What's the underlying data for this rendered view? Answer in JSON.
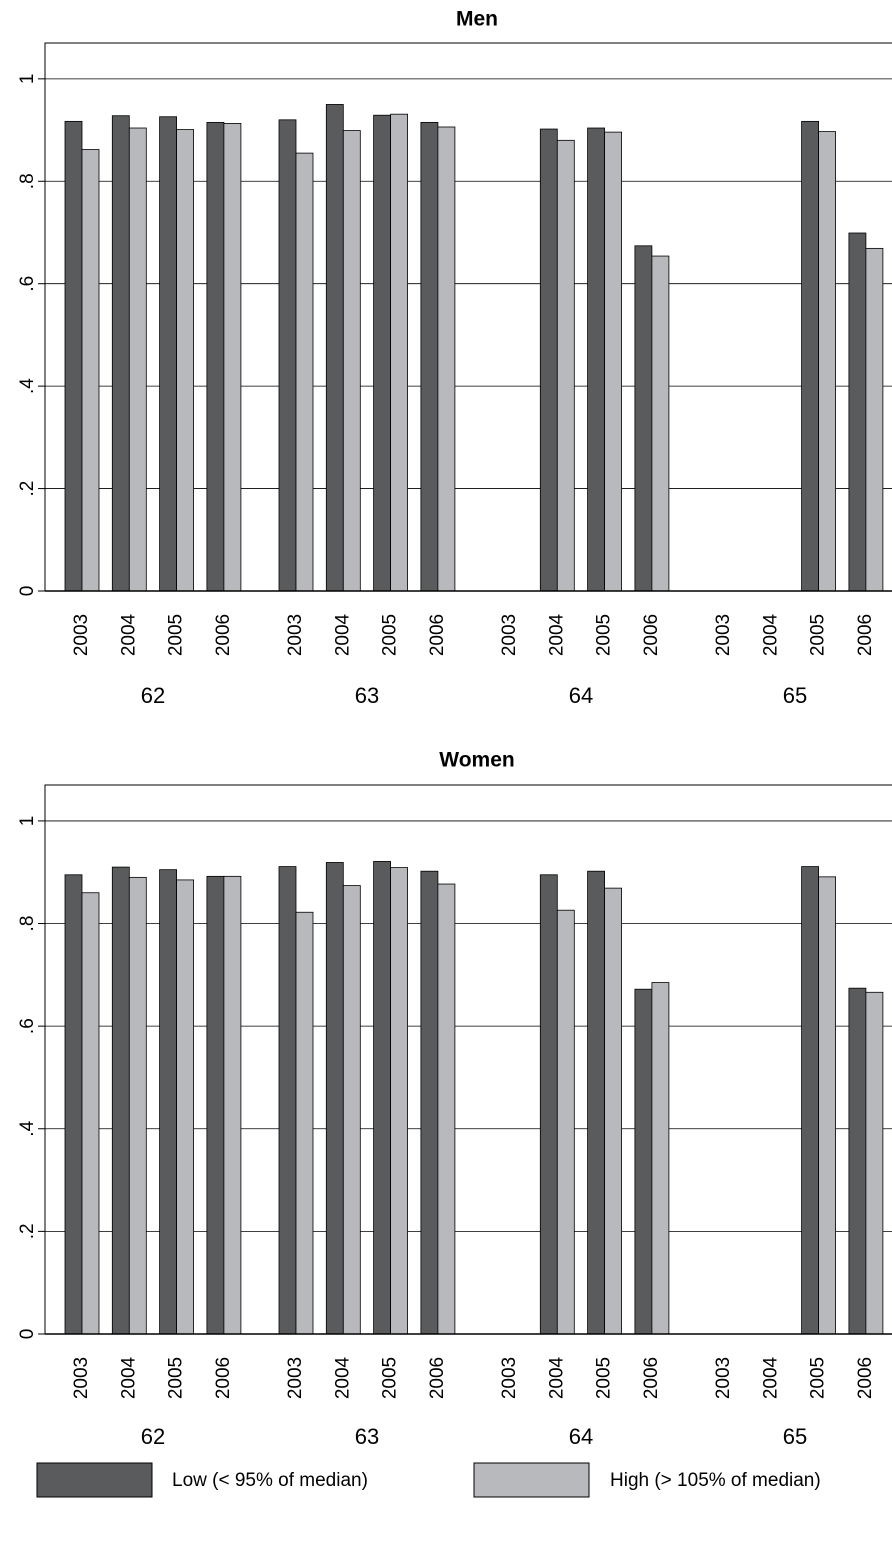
{
  "chart_data": [
    {
      "type": "bar",
      "title": "Men",
      "categories": [
        "2003",
        "2004",
        "2005",
        "2006",
        "2003",
        "2004",
        "2005",
        "2006",
        "2003",
        "2004",
        "2005",
        "2006",
        "2003",
        "2004",
        "2005",
        "2006"
      ],
      "groups": [
        "62",
        "63",
        "64",
        "65"
      ],
      "series": [
        {
          "name": "Low (< 95% of median)",
          "color": "#5a5b5d",
          "values": [
            0.917,
            0.928,
            0.926,
            0.915,
            0.92,
            0.95,
            0.929,
            0.915,
            null,
            0.902,
            0.904,
            0.674,
            null,
            null,
            0.917,
            0.699
          ]
        },
        {
          "name": "High (> 105% of median)",
          "color": "#b8b9bc",
          "values": [
            0.862,
            0.904,
            0.901,
            0.913,
            0.855,
            0.899,
            0.931,
            0.906,
            null,
            0.88,
            0.896,
            0.654,
            null,
            null,
            0.897,
            0.669
          ]
        }
      ],
      "ylim": [
        0,
        1.07
      ],
      "yticks": [
        0,
        {
          "value": 0.2,
          "label": ".2"
        },
        {
          "value": 0.4,
          "label": ".4"
        },
        {
          "value": 0.6,
          "label": ".6"
        },
        {
          "value": 0.8,
          "label": ".8"
        },
        1
      ],
      "grid": true
    },
    {
      "type": "bar",
      "title": "Women",
      "categories": [
        "2003",
        "2004",
        "2005",
        "2006",
        "2003",
        "2004",
        "2005",
        "2006",
        "2003",
        "2004",
        "2005",
        "2006",
        "2003",
        "2004",
        "2005",
        "2006"
      ],
      "groups": [
        "62",
        "63",
        "64",
        "65"
      ],
      "series": [
        {
          "color": "#5a5b5d",
          "values": [
            0.895,
            0.91,
            0.905,
            0.892,
            0.911,
            0.919,
            0.921,
            0.902,
            null,
            0.895,
            0.902,
            0.672,
            null,
            null,
            0.911,
            0.674
          ]
        },
        {
          "color": "#b8b9bc",
          "values": [
            0.86,
            0.89,
            0.885,
            0.892,
            0.822,
            0.874,
            0.909,
            0.877,
            null,
            0.826,
            0.869,
            0.685,
            null,
            null,
            0.891,
            0.666
          ]
        }
      ],
      "ylim": [
        0,
        1.07
      ],
      "yticks": [
        0,
        {
          "value": 0.2,
          "label": ".2"
        },
        {
          "value": 0.4,
          "label": ".4"
        },
        {
          "value": 0.6,
          "label": ".6"
        },
        {
          "value": 0.8,
          "label": ".8"
        },
        1
      ],
      "grid": true
    }
  ]
}
